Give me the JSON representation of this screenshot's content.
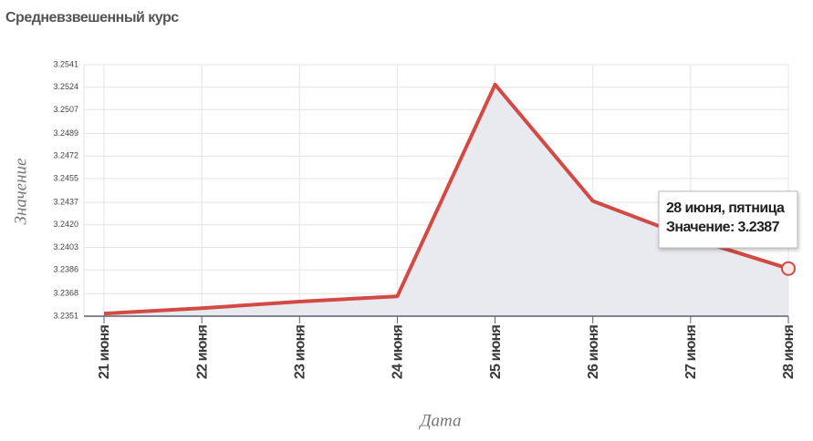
{
  "chart_data": {
    "type": "line",
    "title": "Средневзвешенный курс",
    "y_label": "Значение",
    "x_label": "Дата",
    "categories": [
      "21 июня",
      "22 июня",
      "23 июня",
      "24 июня",
      "25 июня",
      "26 июня",
      "27 июня",
      "28 июня"
    ],
    "series": [
      {
        "name": "Значение",
        "color": "#d24a43",
        "values": [
          3.2353,
          3.2357,
          3.2362,
          3.2366,
          3.2526,
          3.2438,
          3.241,
          3.2387
        ]
      }
    ],
    "ylim": [
      3.2351,
      3.2541
    ],
    "yticks": [
      3.2351,
      3.2368,
      3.2386,
      3.2403,
      {
        "value": 3.242,
        "label": "3.2420"
      },
      3.2437,
      3.2455,
      3.2472,
      3.2489,
      3.2507,
      3.2524,
      3.2541
    ],
    "grid": true,
    "area": true,
    "tooltip": {
      "title": "28 июня, пятница",
      "text": "Значение: 3.2387"
    }
  }
}
